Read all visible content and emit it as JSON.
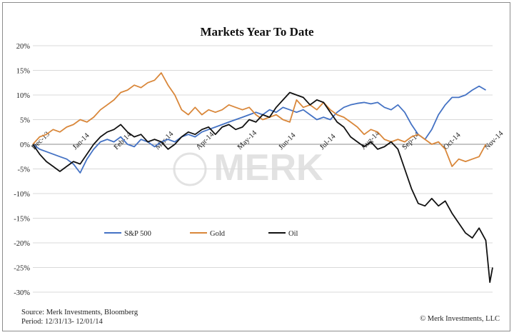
{
  "chart_data": {
    "type": "line",
    "title": "Markets Year To Date",
    "xlabel": "",
    "ylabel": "",
    "ylim": [
      -30,
      20
    ],
    "yticks": [
      20,
      15,
      10,
      5,
      0,
      -5,
      -10,
      -15,
      -20,
      -25,
      -30
    ],
    "ytick_labels": [
      "20%",
      "15%",
      "10%",
      "5%",
      "0%",
      "-5%",
      "-10%",
      "-15%",
      "-20%",
      "-25%",
      "-30%"
    ],
    "xticks": [
      "Dec-13",
      "Jan-14",
      "Feb-14",
      "Mar-14",
      "Apr-14",
      "May-14",
      "Jun-14",
      "Jul-14",
      "Aug-14",
      "Sep-14",
      "Oct-14",
      "Nov-14"
    ],
    "xlim_days": [
      0,
      335
    ],
    "grid": "horizontal",
    "legend_position": "bottom-left",
    "series": [
      {
        "name": "S&P 500",
        "color": "#4472c4",
        "points": [
          [
            0,
            0
          ],
          [
            5,
            -1
          ],
          [
            10,
            -1.5
          ],
          [
            15,
            -2
          ],
          [
            20,
            -2.5
          ],
          [
            25,
            -3
          ],
          [
            30,
            -4
          ],
          [
            35,
            -5.8
          ],
          [
            40,
            -3
          ],
          [
            45,
            -1
          ],
          [
            50,
            0.5
          ],
          [
            55,
            1
          ],
          [
            60,
            0.5
          ],
          [
            65,
            1.5
          ],
          [
            70,
            0
          ],
          [
            75,
            -0.5
          ],
          [
            80,
            1
          ],
          [
            85,
            0.5
          ],
          [
            90,
            -0.5
          ],
          [
            95,
            0.5
          ],
          [
            100,
            1
          ],
          [
            105,
            0.5
          ],
          [
            110,
            1.5
          ],
          [
            115,
            2
          ],
          [
            120,
            1.5
          ],
          [
            125,
            2.5
          ],
          [
            130,
            3
          ],
          [
            135,
            3.5
          ],
          [
            140,
            4
          ],
          [
            145,
            4.5
          ],
          [
            150,
            5
          ],
          [
            155,
            5.5
          ],
          [
            160,
            6
          ],
          [
            165,
            6.5
          ],
          [
            170,
            6
          ],
          [
            175,
            7
          ],
          [
            180,
            6.5
          ],
          [
            185,
            7.5
          ],
          [
            190,
            7
          ],
          [
            195,
            6.5
          ],
          [
            200,
            7
          ],
          [
            205,
            6
          ],
          [
            210,
            5
          ],
          [
            215,
            5.5
          ],
          [
            220,
            5
          ],
          [
            225,
            6.5
          ],
          [
            230,
            7.5
          ],
          [
            235,
            8
          ],
          [
            240,
            8.3
          ],
          [
            245,
            8.5
          ],
          [
            250,
            8.2
          ],
          [
            255,
            8.5
          ],
          [
            260,
            7.5
          ],
          [
            265,
            7
          ],
          [
            270,
            8
          ],
          [
            275,
            6.5
          ],
          [
            280,
            4
          ],
          [
            285,
            2
          ],
          [
            290,
            1
          ],
          [
            295,
            3
          ],
          [
            300,
            6
          ],
          [
            305,
            8
          ],
          [
            310,
            9.5
          ],
          [
            315,
            9.5
          ],
          [
            320,
            10
          ],
          [
            325,
            11
          ],
          [
            330,
            11.8
          ],
          [
            335,
            11
          ]
        ]
      },
      {
        "name": "Gold",
        "color": "#d9873a",
        "points": [
          [
            0,
            0
          ],
          [
            5,
            1.5
          ],
          [
            10,
            2
          ],
          [
            15,
            3
          ],
          [
            20,
            2.5
          ],
          [
            25,
            3.5
          ],
          [
            30,
            4
          ],
          [
            35,
            5
          ],
          [
            40,
            4.5
          ],
          [
            45,
            5.5
          ],
          [
            50,
            7
          ],
          [
            55,
            8
          ],
          [
            60,
            9
          ],
          [
            65,
            10.5
          ],
          [
            70,
            11
          ],
          [
            75,
            12
          ],
          [
            80,
            11.5
          ],
          [
            85,
            12.5
          ],
          [
            90,
            13
          ],
          [
            95,
            14.5
          ],
          [
            100,
            12
          ],
          [
            105,
            10
          ],
          [
            110,
            7
          ],
          [
            115,
            6
          ],
          [
            120,
            7.5
          ],
          [
            125,
            6
          ],
          [
            130,
            7
          ],
          [
            135,
            6.5
          ],
          [
            140,
            7
          ],
          [
            145,
            8
          ],
          [
            150,
            7.5
          ],
          [
            155,
            7
          ],
          [
            160,
            7.5
          ],
          [
            165,
            6
          ],
          [
            170,
            5
          ],
          [
            175,
            5.5
          ],
          [
            180,
            6
          ],
          [
            185,
            5
          ],
          [
            190,
            4.5
          ],
          [
            195,
            9
          ],
          [
            200,
            7.5
          ],
          [
            205,
            8
          ],
          [
            210,
            7
          ],
          [
            215,
            8.5
          ],
          [
            220,
            7
          ],
          [
            225,
            6
          ],
          [
            230,
            5.5
          ],
          [
            235,
            4.5
          ],
          [
            240,
            3.5
          ],
          [
            245,
            2
          ],
          [
            250,
            3
          ],
          [
            255,
            2.5
          ],
          [
            260,
            1
          ],
          [
            265,
            0.5
          ],
          [
            270,
            1
          ],
          [
            275,
            0.5
          ],
          [
            280,
            1.5
          ],
          [
            285,
            2
          ],
          [
            290,
            1
          ],
          [
            295,
            0
          ],
          [
            300,
            0.5
          ],
          [
            305,
            -1
          ],
          [
            310,
            -4.5
          ],
          [
            315,
            -3
          ],
          [
            320,
            -3.5
          ],
          [
            325,
            -3
          ],
          [
            330,
            -2.5
          ],
          [
            335,
            0
          ]
        ]
      },
      {
        "name": "Oil",
        "color": "#111111",
        "points": [
          [
            0,
            0
          ],
          [
            5,
            -2
          ],
          [
            10,
            -3.5
          ],
          [
            15,
            -4.5
          ],
          [
            20,
            -5.5
          ],
          [
            25,
            -4.5
          ],
          [
            30,
            -3.5
          ],
          [
            35,
            -4
          ],
          [
            40,
            -2
          ],
          [
            45,
            0
          ],
          [
            50,
            1.5
          ],
          [
            55,
            2.5
          ],
          [
            60,
            3
          ],
          [
            65,
            4
          ],
          [
            70,
            2.5
          ],
          [
            75,
            1.5
          ],
          [
            80,
            2
          ],
          [
            85,
            0.5
          ],
          [
            90,
            1
          ],
          [
            95,
            0.5
          ],
          [
            100,
            -1
          ],
          [
            105,
            0
          ],
          [
            110,
            1.5
          ],
          [
            115,
            2.5
          ],
          [
            120,
            2
          ],
          [
            125,
            3
          ],
          [
            130,
            3.5
          ],
          [
            135,
            2
          ],
          [
            140,
            3.5
          ],
          [
            145,
            4
          ],
          [
            150,
            3
          ],
          [
            155,
            3.5
          ],
          [
            160,
            5
          ],
          [
            165,
            4.5
          ],
          [
            170,
            6
          ],
          [
            175,
            5.5
          ],
          [
            180,
            7.5
          ],
          [
            185,
            9
          ],
          [
            190,
            10.5
          ],
          [
            195,
            10
          ],
          [
            200,
            9.5
          ],
          [
            205,
            8
          ],
          [
            210,
            9
          ],
          [
            215,
            8.5
          ],
          [
            220,
            6.5
          ],
          [
            225,
            4.5
          ],
          [
            230,
            3.5
          ],
          [
            235,
            1.5
          ],
          [
            240,
            0.5
          ],
          [
            245,
            -0.5
          ],
          [
            250,
            0.5
          ],
          [
            255,
            -1
          ],
          [
            260,
            -0.5
          ],
          [
            265,
            0.5
          ],
          [
            270,
            -1
          ],
          [
            275,
            -5
          ],
          [
            280,
            -9
          ],
          [
            285,
            -12
          ],
          [
            290,
            -12.5
          ],
          [
            295,
            -11
          ],
          [
            300,
            -12.5
          ],
          [
            305,
            -11.5
          ],
          [
            310,
            -14
          ],
          [
            315,
            -16
          ],
          [
            320,
            -18
          ],
          [
            325,
            -19
          ],
          [
            330,
            -17
          ],
          [
            335,
            -19.5
          ],
          [
            338,
            -28
          ],
          [
            340,
            -25
          ]
        ]
      }
    ],
    "watermark": "MERK",
    "source": "Source: Merk Investments, Bloomberg",
    "period": "Period: 12/31/13- 12/01/14",
    "copyright": "© Merk Investments, LLC"
  }
}
